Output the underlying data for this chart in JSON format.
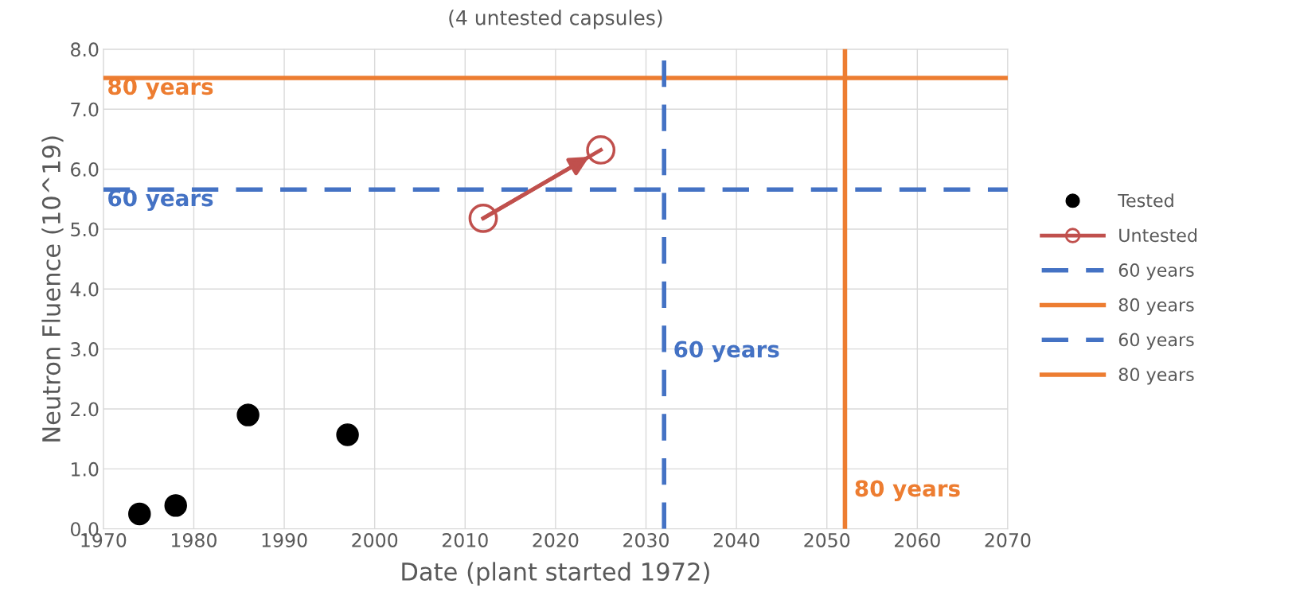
{
  "chart_data": {
    "type": "scatter",
    "title": "(4 untested capsules)",
    "xlabel": "Date (plant started 1972)",
    "ylabel": "Neutron Fluence (10^19)",
    "series": [
      {
        "name": "Tested",
        "color": "#000000",
        "marker": "circle",
        "x": [
          1974,
          1978,
          1986,
          1997
        ],
        "values": [
          0.25,
          0.39,
          1.9,
          1.57
        ]
      },
      {
        "name": "Untested",
        "type": "line",
        "color": "#c0504d",
        "marker": "circle",
        "x": [
          2012,
          2025
        ],
        "values": [
          5.18,
          6.32
        ]
      }
    ],
    "ref_lines": [
      {
        "axis": "y",
        "value": 5.66,
        "label": "60 years",
        "color": "#4472c4",
        "line_style": "dashed"
      },
      {
        "axis": "y",
        "value": 7.52,
        "label": "80 years",
        "color": "#ed7d31",
        "line_style": "solid"
      },
      {
        "axis": "x",
        "value": 2032,
        "label": "60 years",
        "color": "#4472c4",
        "line_style": "dashed"
      },
      {
        "axis": "x",
        "value": 2052,
        "label": "80 years",
        "color": "#ed7d31",
        "line_style": "solid"
      }
    ],
    "xlim": [
      1970,
      2070
    ],
    "xticks": [
      1970,
      1980,
      1990,
      2000,
      2010,
      2020,
      2030,
      2040,
      2050,
      2060,
      2070
    ],
    "ylim": [
      0,
      8
    ],
    "yticks": [
      {
        "value": 0,
        "label": "0.0"
      },
      {
        "value": 1,
        "label": "1.0"
      },
      {
        "value": 2,
        "label": "2.0"
      },
      {
        "value": 3,
        "label": "3.0"
      },
      {
        "value": 4,
        "label": "4.0"
      },
      {
        "value": 5,
        "label": "5.0"
      },
      {
        "value": 6,
        "label": "6.0"
      },
      {
        "value": 7,
        "label": "7.0"
      },
      {
        "value": 8,
        "label": "8.0"
      }
    ],
    "grid": true,
    "legend": "right"
  }
}
